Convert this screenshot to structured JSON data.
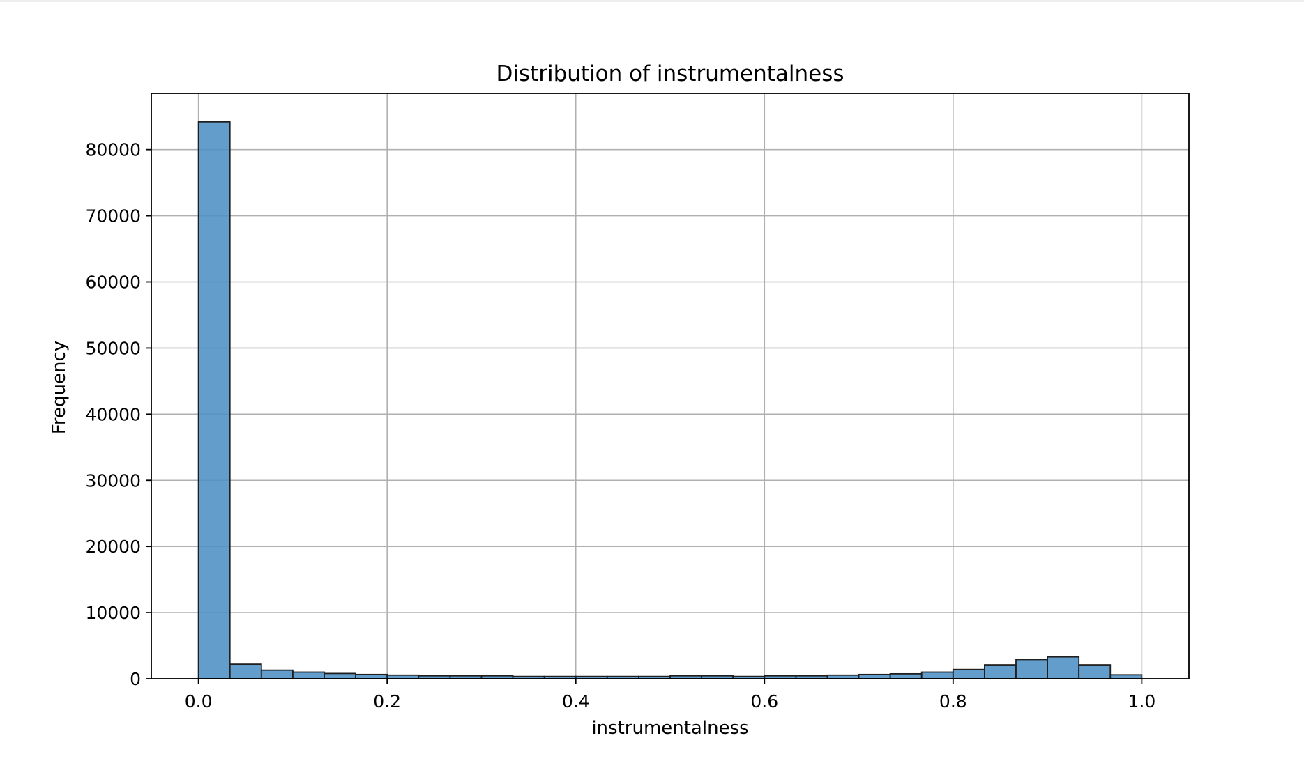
{
  "chart_data": {
    "type": "bar",
    "title": "Distribution of instrumentalness",
    "xlabel": "instrumentalness",
    "ylabel": "Frequency",
    "xlim": [
      -0.05,
      1.05
    ],
    "ylim": [
      0,
      88500
    ],
    "xticks": [
      0.0,
      0.2,
      0.4,
      0.6,
      0.8,
      1.0
    ],
    "xtick_labels": [
      "0.0",
      "0.2",
      "0.4",
      "0.6",
      "0.8",
      "1.0"
    ],
    "yticks": [
      0,
      10000,
      20000,
      30000,
      40000,
      50000,
      60000,
      70000,
      80000
    ],
    "ytick_labels": [
      "0",
      "10000",
      "20000",
      "30000",
      "40000",
      "50000",
      "60000",
      "70000",
      "80000"
    ],
    "grid": true,
    "bins": 30,
    "bin_range": [
      0.0,
      1.0
    ],
    "values": [
      84200,
      2200,
      1300,
      1000,
      800,
      650,
      550,
      450,
      450,
      450,
      350,
      350,
      350,
      350,
      350,
      450,
      450,
      350,
      450,
      450,
      550,
      650,
      750,
      1000,
      1400,
      2100,
      2900,
      3300,
      2100,
      600
    ],
    "bar_color": "#4c8fc4",
    "edge_color": "#1f1f1f"
  }
}
